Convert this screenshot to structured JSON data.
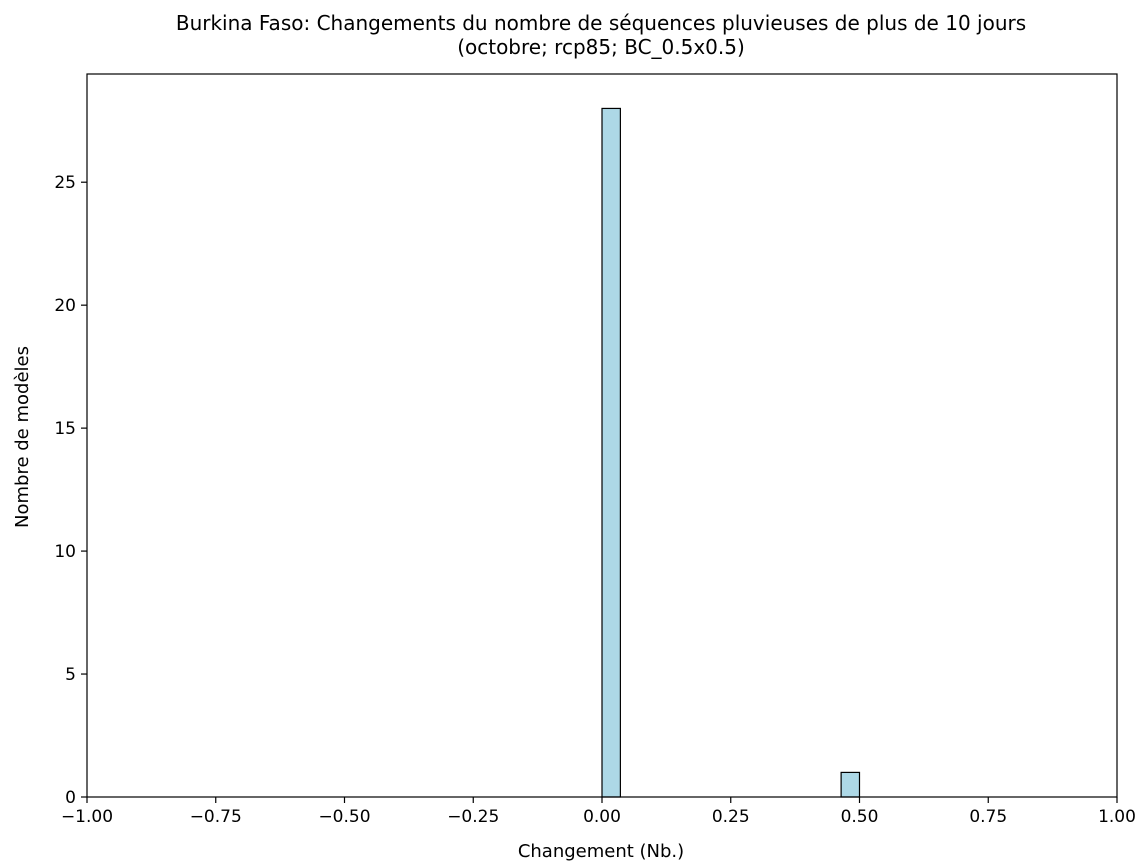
{
  "chart_data": {
    "type": "bar",
    "title": "Burkina Faso: Changements du nombre de séquences pluvieuses de plus de 10 jours",
    "subtitle": "(octobre; rcp85; BC_0.5x0.5)",
    "xlabel": "Changement (Nb.)",
    "ylabel": "Nombre de modèles",
    "xlim": [
      -1.0,
      1.0
    ],
    "ylim": [
      0,
      29.4
    ],
    "x_ticks": [
      -1.0,
      -0.75,
      -0.5,
      -0.25,
      0.0,
      0.25,
      0.5,
      0.75,
      1.0
    ],
    "x_tick_labels": [
      "−1.00",
      "−0.75",
      "−0.50",
      "−0.25",
      "0.00",
      "0.25",
      "0.50",
      "0.75",
      "1.00"
    ],
    "y_ticks": [
      0,
      5,
      10,
      15,
      20,
      25
    ],
    "y_tick_labels": [
      "0",
      "5",
      "10",
      "15",
      "20",
      "25"
    ],
    "bin_width": 0.0357,
    "bins": [
      {
        "x0": 0.0,
        "x1": 0.0357,
        "count": 28
      },
      {
        "x0": 0.0357,
        "x1": 0.4643,
        "count": 0
      },
      {
        "x0": 0.4643,
        "x1": 0.5,
        "count": 1
      }
    ],
    "bar_color": "#add8e6",
    "edge_color": "#000000",
    "grid": false,
    "legend": "none"
  }
}
